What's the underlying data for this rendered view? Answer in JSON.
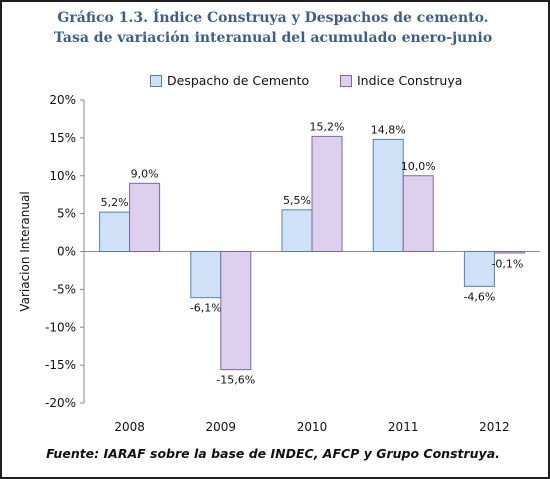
{
  "titles": {
    "line1": "Gráfico  1.3. Índice Construya y Despachos de cemento.",
    "line2": "Tasa de variación interanual del acumulado enero-junio"
  },
  "source": "Fuente: IARAF sobre la base de INDEC, AFCP y Grupo Construya.",
  "colors": {
    "title": "#3a5f8f",
    "series_blue": "#cfe1f6",
    "series_blue_border": "#4f7fbf",
    "series_purple": "#ddd0ee",
    "series_purple_border": "#8064a2"
  },
  "chart_data": {
    "type": "bar",
    "categories": [
      "2008",
      "2009",
      "2010",
      "2011",
      "2012"
    ],
    "series": [
      {
        "name": "Despacho de Cemento",
        "values": [
          5.2,
          -6.1,
          5.5,
          14.8,
          -4.6
        ],
        "labels": [
          "5,2%",
          "-6,1%",
          "5,5%",
          "14,8%",
          "-4,6%"
        ]
      },
      {
        "name": "Indice Construya",
        "values": [
          9.0,
          -15.6,
          15.2,
          10.0,
          -0.1
        ],
        "labels": [
          "9,0%",
          "-15,6%",
          "15,2%",
          "10,0%",
          "-0,1%"
        ]
      }
    ],
    "ylabel": "Variacion Interanual",
    "ylim": [
      -20,
      20
    ],
    "yticks": [
      20,
      15,
      10,
      5,
      0,
      -5,
      -10,
      -15,
      -20
    ],
    "ytick_labels": [
      "20%",
      "15%",
      "10%",
      "5%",
      "0%",
      "-5%",
      "-10%",
      "-15%",
      "-20%"
    ],
    "grid": false,
    "legend_position": "top"
  }
}
